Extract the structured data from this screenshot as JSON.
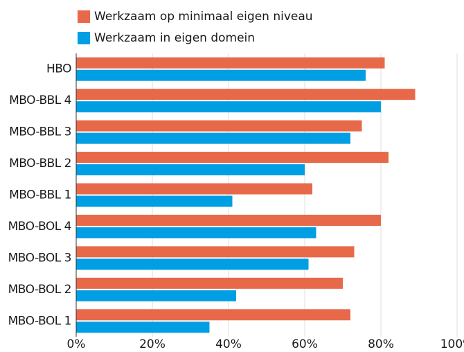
{
  "chart_data": {
    "type": "bar",
    "orientation": "horizontal",
    "categories": [
      "HBO",
      "MBO-BBL 4",
      "MBO-BBL 3",
      "MBO-BBL 2",
      "MBO-BBL 1",
      "MBO-BOL 4",
      "MBO-BOL 3",
      "MBO-BOL 2",
      "MBO-BOL 1"
    ],
    "series": [
      {
        "name": "Werkzaam op minimaal eigen niveau",
        "color": "#e8694a",
        "values": [
          81,
          89,
          75,
          82,
          62,
          80,
          73,
          70,
          72
        ]
      },
      {
        "name": "Werkzaam in eigen domein",
        "color": "#009fe3",
        "values": [
          76,
          80,
          72,
          60,
          41,
          63,
          61,
          42,
          35
        ]
      }
    ],
    "xlim": [
      0,
      100
    ],
    "xticks": [
      {
        "value": 0,
        "label": "0%"
      },
      {
        "value": 20,
        "label": "20%"
      },
      {
        "value": 40,
        "label": "40%"
      },
      {
        "value": 60,
        "label": "60%"
      },
      {
        "value": 80,
        "label": "80%"
      },
      {
        "value": 100,
        "label": "100%"
      }
    ],
    "grid": true,
    "legend": "top"
  }
}
